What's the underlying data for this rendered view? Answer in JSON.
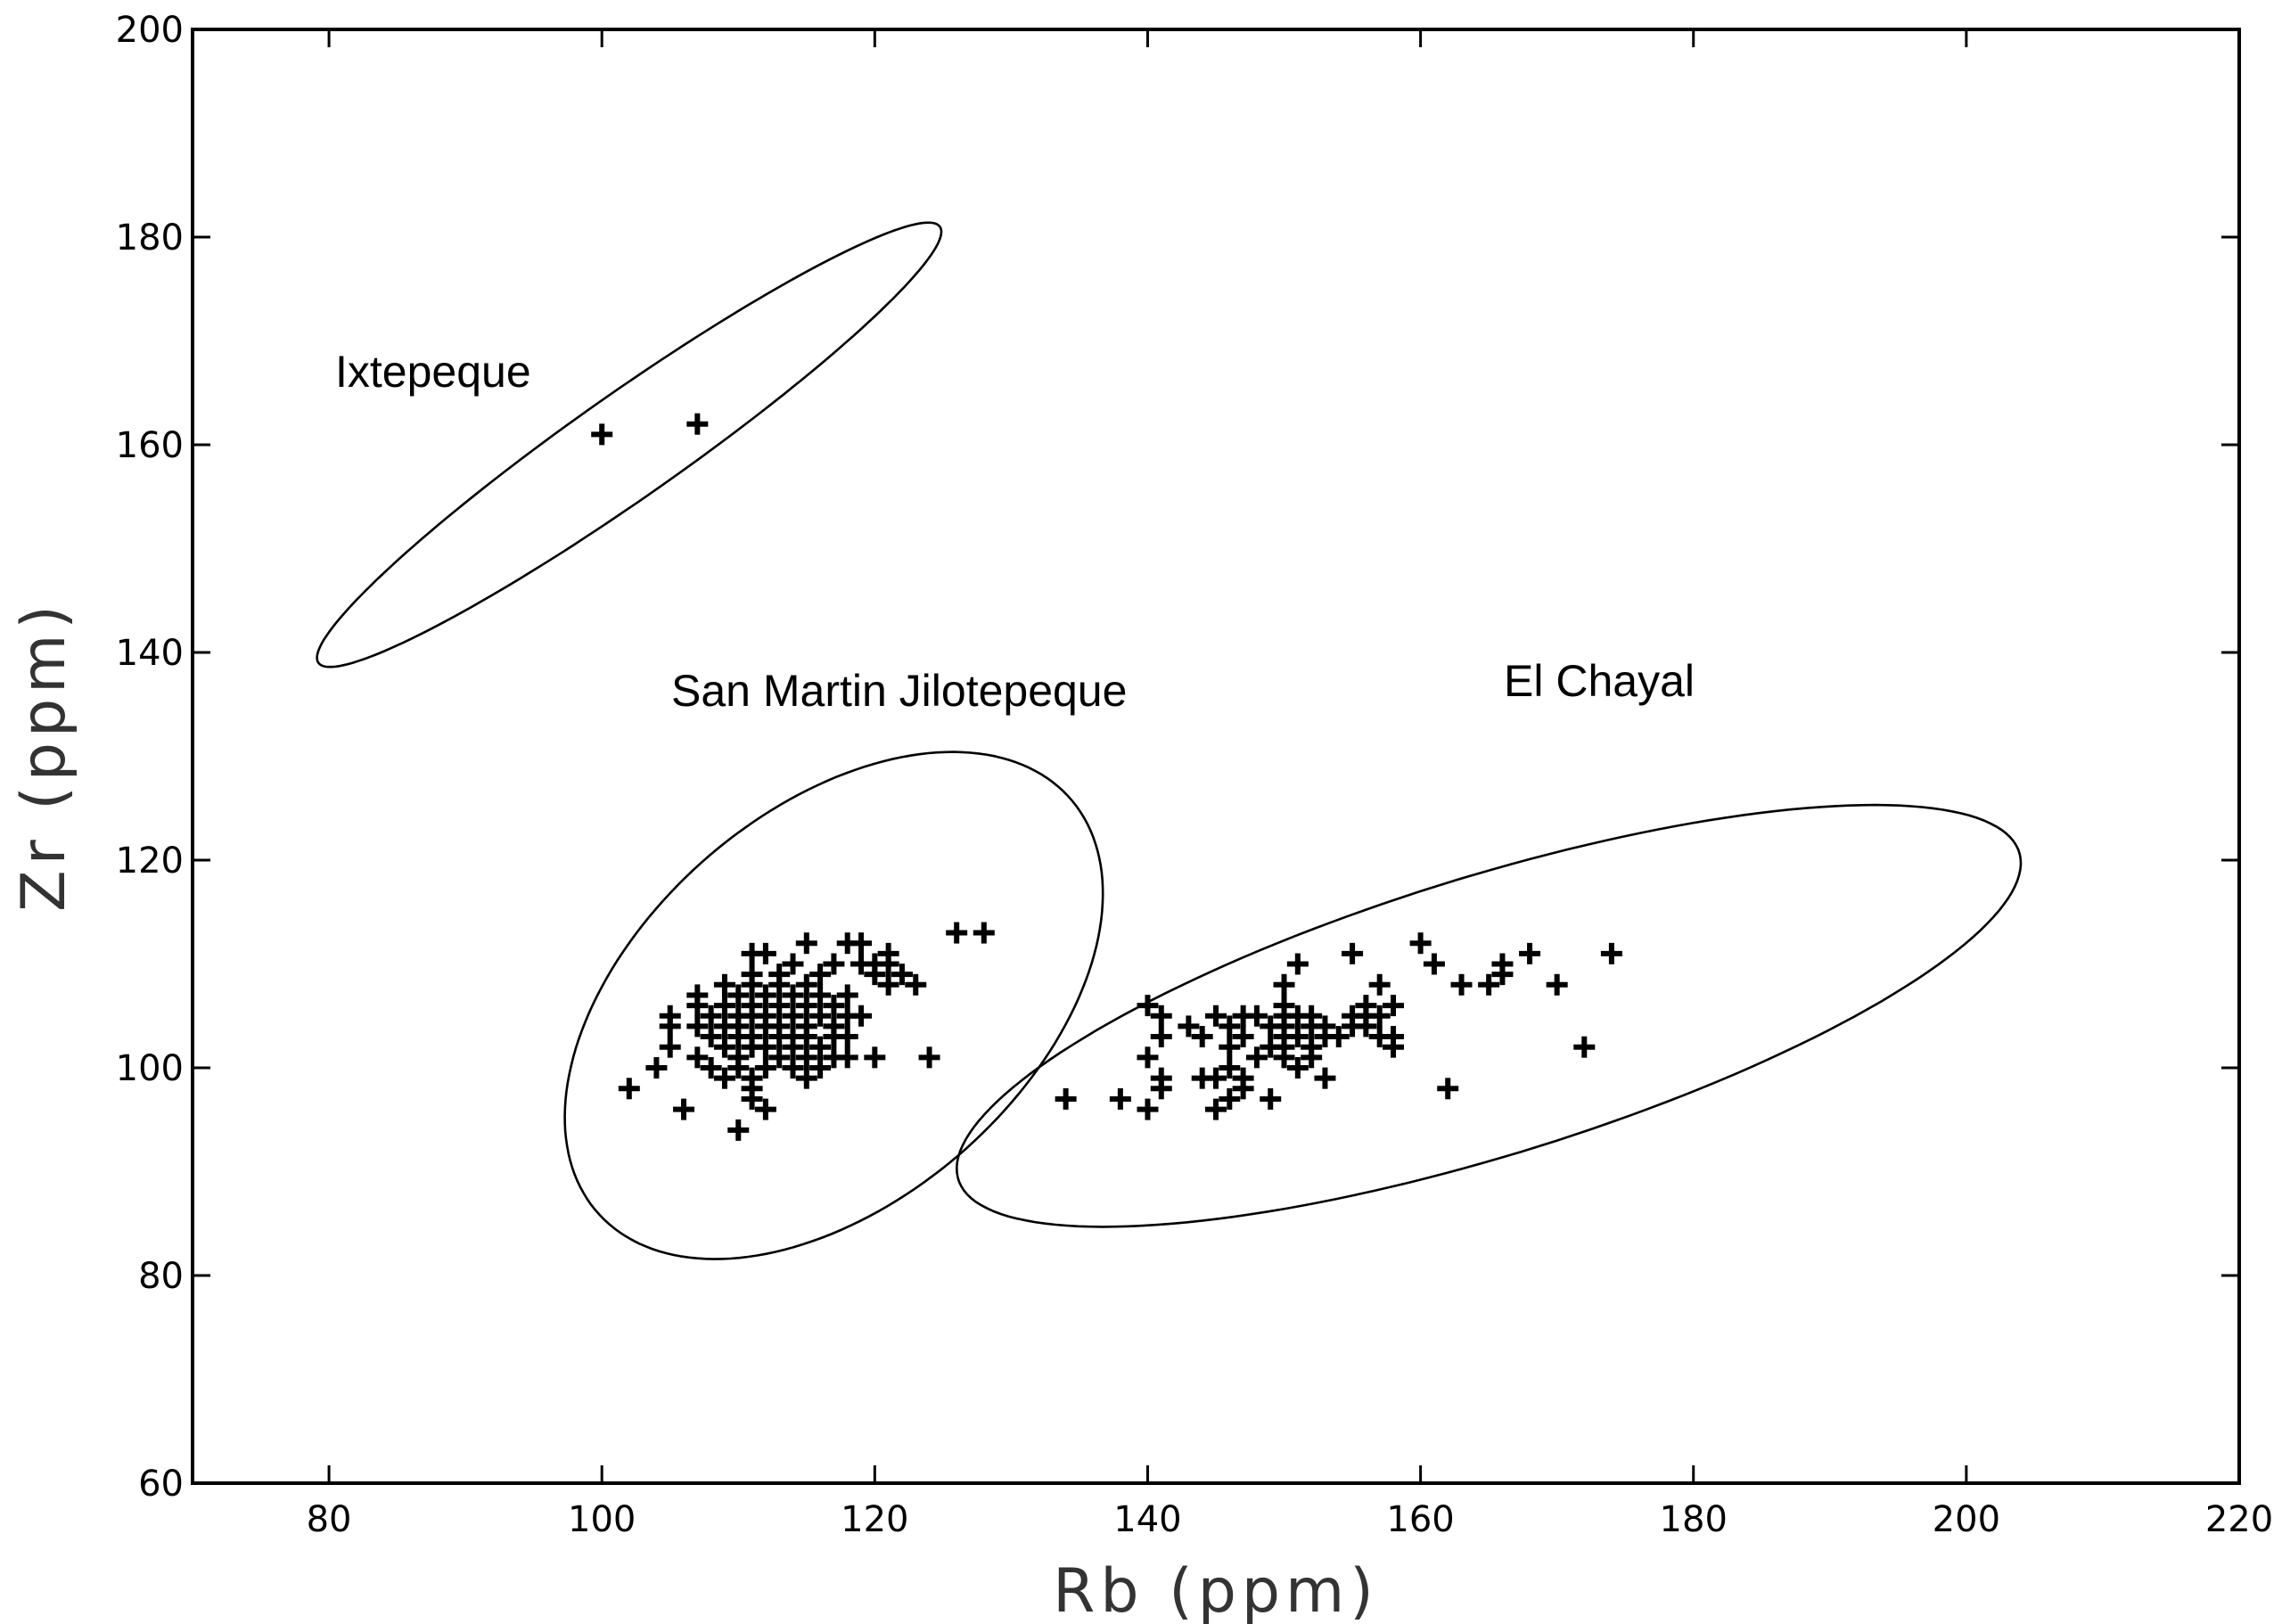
{
  "chart_data": {
    "type": "scatter",
    "title": "",
    "xlabel": "Rb (ppm)",
    "ylabel": "Zr (ppm)",
    "xlim": [
      70,
      220
    ],
    "ylim": [
      60,
      200
    ],
    "xticks": [
      80,
      100,
      120,
      140,
      160,
      180,
      200,
      220
    ],
    "yticks": [
      60,
      80,
      100,
      120,
      140,
      160,
      180,
      200
    ],
    "grid": false,
    "marker": "plus",
    "groups": [
      {
        "name": "Ixtepeque",
        "ellipse": {
          "cx": 102,
          "cy": 160,
          "rx": 31,
          "ry": 4.5,
          "angle_deg": 43
        },
        "points": [
          [
            100,
            161
          ],
          [
            107,
            162
          ]
        ]
      },
      {
        "name": "San Martin Jilotepeque",
        "ellipse": {
          "cx": 117,
          "cy": 106,
          "rx": 27,
          "ry": 16,
          "angle_deg": 58
        },
        "points": [
          [
            102,
            98
          ],
          [
            104,
            100
          ],
          [
            105,
            102
          ],
          [
            105,
            104
          ],
          [
            105,
            105
          ],
          [
            106,
            96
          ],
          [
            107,
            101
          ],
          [
            107,
            104
          ],
          [
            107,
            106
          ],
          [
            107,
            107
          ],
          [
            108,
            100
          ],
          [
            108,
            103
          ],
          [
            108,
            105
          ],
          [
            109,
            99
          ],
          [
            109,
            102
          ],
          [
            109,
            104
          ],
          [
            109,
            106
          ],
          [
            109,
            108
          ],
          [
            110,
            94
          ],
          [
            110,
            100
          ],
          [
            110,
            101
          ],
          [
            110,
            103
          ],
          [
            110,
            104
          ],
          [
            110,
            105
          ],
          [
            110,
            107
          ],
          [
            111,
            97
          ],
          [
            111,
            98
          ],
          [
            111,
            99
          ],
          [
            111,
            102
          ],
          [
            111,
            103
          ],
          [
            111,
            105
          ],
          [
            111,
            106
          ],
          [
            111,
            108
          ],
          [
            111,
            109
          ],
          [
            111,
            111
          ],
          [
            112,
            96
          ],
          [
            112,
            100
          ],
          [
            112,
            102
          ],
          [
            112,
            104
          ],
          [
            112,
            105
          ],
          [
            112,
            107
          ],
          [
            112,
            111
          ],
          [
            113,
            101
          ],
          [
            113,
            103
          ],
          [
            113,
            104
          ],
          [
            113,
            106
          ],
          [
            113,
            108
          ],
          [
            113,
            109
          ],
          [
            114,
            100
          ],
          [
            114,
            102
          ],
          [
            114,
            103
          ],
          [
            114,
            105
          ],
          [
            114,
            107
          ],
          [
            114,
            110
          ],
          [
            115,
            99
          ],
          [
            115,
            101
          ],
          [
            115,
            103
          ],
          [
            115,
            104
          ],
          [
            115,
            106
          ],
          [
            115,
            108
          ],
          [
            115,
            112
          ],
          [
            116,
            100
          ],
          [
            116,
            102
          ],
          [
            116,
            105
          ],
          [
            116,
            107
          ],
          [
            116,
            109
          ],
          [
            117,
            101
          ],
          [
            117,
            103
          ],
          [
            117,
            104
          ],
          [
            117,
            106
          ],
          [
            117,
            110
          ],
          [
            118,
            101
          ],
          [
            118,
            103
          ],
          [
            118,
            105
          ],
          [
            118,
            107
          ],
          [
            118,
            112
          ],
          [
            119,
            105
          ],
          [
            119,
            110
          ],
          [
            119,
            112
          ],
          [
            120,
            101
          ],
          [
            120,
            109
          ],
          [
            120,
            110
          ],
          [
            121,
            108
          ],
          [
            121,
            110
          ],
          [
            121,
            111
          ],
          [
            122,
            109
          ],
          [
            123,
            108
          ],
          [
            124,
            101
          ],
          [
            126,
            113
          ],
          [
            128,
            113
          ]
        ]
      },
      {
        "name": "El Chayal",
        "ellipse": {
          "cx": 165,
          "cy": 105,
          "rx": 42,
          "ry": 13,
          "angle_deg": 23
        },
        "points": [
          [
            134,
            97
          ],
          [
            138,
            97
          ],
          [
            140,
            96
          ],
          [
            140,
            101
          ],
          [
            140,
            106
          ],
          [
            141,
            98
          ],
          [
            141,
            99
          ],
          [
            141,
            103
          ],
          [
            141,
            105
          ],
          [
            143,
            104
          ],
          [
            144,
            103
          ],
          [
            144,
            99
          ],
          [
            145,
            96
          ],
          [
            145,
            99
          ],
          [
            145,
            105
          ],
          [
            146,
            97
          ],
          [
            146,
            100
          ],
          [
            146,
            102
          ],
          [
            146,
            104
          ],
          [
            147,
            98
          ],
          [
            147,
            99
          ],
          [
            147,
            103
          ],
          [
            147,
            105
          ],
          [
            148,
            101
          ],
          [
            148,
            105
          ],
          [
            149,
            97
          ],
          [
            149,
            102
          ],
          [
            149,
            104
          ],
          [
            150,
            101
          ],
          [
            150,
            102
          ],
          [
            150,
            103
          ],
          [
            150,
            104
          ],
          [
            150,
            105
          ],
          [
            150,
            106
          ],
          [
            150,
            108
          ],
          [
            151,
            100
          ],
          [
            151,
            103
          ],
          [
            151,
            105
          ],
          [
            151,
            110
          ],
          [
            152,
            101
          ],
          [
            152,
            102
          ],
          [
            152,
            104
          ],
          [
            152,
            105
          ],
          [
            153,
            99
          ],
          [
            153,
            103
          ],
          [
            153,
            104
          ],
          [
            154,
            103
          ],
          [
            155,
            104
          ],
          [
            155,
            105
          ],
          [
            155,
            111
          ],
          [
            156,
            104
          ],
          [
            156,
            105
          ],
          [
            156,
            106
          ],
          [
            157,
            103
          ],
          [
            157,
            105
          ],
          [
            157,
            108
          ],
          [
            158,
            102
          ],
          [
            158,
            103
          ],
          [
            158,
            106
          ],
          [
            160,
            112
          ],
          [
            161,
            110
          ],
          [
            162,
            98
          ],
          [
            163,
            108
          ],
          [
            165,
            108
          ],
          [
            166,
            109
          ],
          [
            166,
            110
          ],
          [
            168,
            111
          ],
          [
            170,
            108
          ],
          [
            172,
            102
          ],
          [
            174,
            111
          ]
        ]
      }
    ]
  }
}
